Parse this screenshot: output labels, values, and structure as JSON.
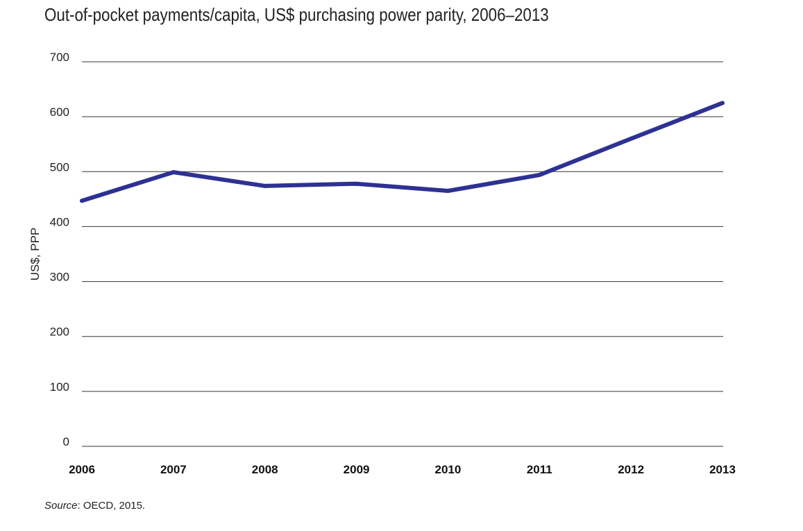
{
  "chart_data": {
    "type": "line",
    "title": "Out-of-pocket payments/capita, US$ purchasing power parity, 2006–2013",
    "xlabel": "",
    "ylabel": "US$, PPP",
    "x": [
      "2006",
      "2007",
      "2008",
      "2009",
      "2010",
      "2011",
      "2012",
      "2013"
    ],
    "series": [
      {
        "values": [
          447,
          499,
          474,
          478,
          465,
          494,
          560,
          625
        ]
      }
    ],
    "ylim": [
      0,
      700
    ],
    "yticks": [
      0,
      100,
      200,
      300,
      400,
      500,
      600,
      700
    ],
    "grid": true,
    "legend": "none",
    "line_color": "#2e3192"
  },
  "source": {
    "label": "Source",
    "text": ": OECD, 2015."
  }
}
